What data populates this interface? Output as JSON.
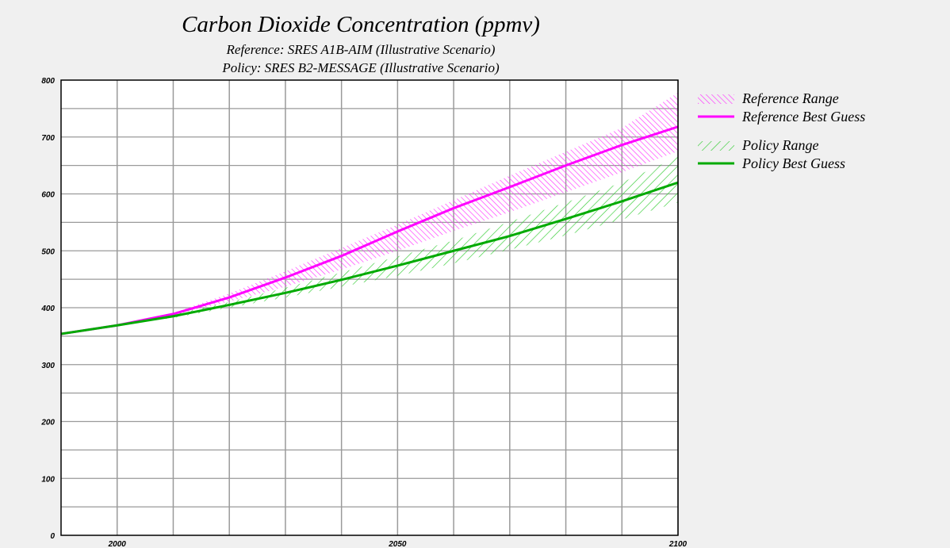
{
  "chart_data": {
    "type": "line",
    "title": "Carbon Dioxide Concentration (ppmv)",
    "subtitle_1": "Reference: SRES A1B-AIM (Illustrative Scenario)",
    "subtitle_2": "Policy: SRES B2-MESSAGE (Illustrative Scenario)",
    "xlabel": "",
    "ylabel": "",
    "xlim": [
      1990,
      2100
    ],
    "ylim": [
      0,
      800
    ],
    "x_ticks_labeled": [
      2000,
      2050,
      2100
    ],
    "x_gridlines": [
      2000,
      2010,
      2020,
      2030,
      2040,
      2050,
      2060,
      2070,
      2080,
      2090,
      2100
    ],
    "y_ticks": [
      0,
      100,
      200,
      300,
      400,
      500,
      600,
      700,
      800
    ],
    "y_gridlines": [
      50,
      100,
      150,
      200,
      250,
      300,
      350,
      400,
      450,
      500,
      550,
      600,
      650,
      700,
      750
    ],
    "grid": true,
    "legend_position": "right",
    "x": [
      1990,
      2000,
      2010,
      2020,
      2030,
      2040,
      2050,
      2060,
      2070,
      2080,
      2090,
      2100
    ],
    "series": [
      {
        "name": "Reference Range",
        "kind": "range",
        "color": "#ff33ff",
        "hatch": "backslash",
        "lower": [
          354,
          369,
          387,
          411,
          437,
          467,
          500,
          535,
          568,
          603,
          638,
          675
        ],
        "upper": [
          354,
          369,
          391,
          425,
          464,
          505,
          546,
          589,
          632,
          674,
          716,
          778
        ]
      },
      {
        "name": "Reference Best Guess",
        "kind": "line",
        "color": "#ff00ff",
        "values": [
          354,
          369,
          389,
          418,
          453,
          491,
          534,
          575,
          612,
          650,
          686,
          718
        ]
      },
      {
        "name": "Policy Range",
        "kind": "range",
        "color": "#33cc33",
        "hatch": "slash",
        "lower": [
          354,
          369,
          382,
          400,
          418,
          437,
          456,
          478,
          502,
          527,
          555,
          585
        ],
        "upper": [
          354,
          369,
          388,
          410,
          435,
          462,
          490,
          518,
          551,
          585,
          620,
          665
        ]
      },
      {
        "name": "Policy Best Guess",
        "kind": "line",
        "color": "#00aa00",
        "values": [
          354,
          369,
          385,
          405,
          426,
          449,
          474,
          500,
          526,
          556,
          587,
          620
        ]
      }
    ]
  }
}
